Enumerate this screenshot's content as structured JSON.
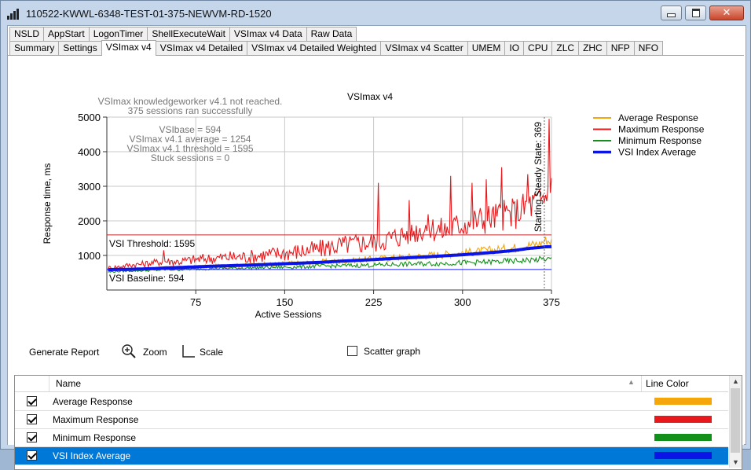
{
  "window": {
    "title": "110522-KWWL-6348-TEST-01-375-NEWVM-RD-1520",
    "buttons": [
      "minimize",
      "maximize",
      "close"
    ]
  },
  "tabs_row1": [
    "NSLD",
    "AppStart",
    "LogonTimer",
    "ShellExecuteWait",
    "VSImax v4 Data",
    "Raw Data"
  ],
  "tabs_row2": [
    "Summary",
    "Settings",
    "VSImax v4",
    "VSImax v4 Detailed",
    "VSImax v4 Detailed Weighted",
    "VSImax v4 Scatter",
    "UMEM",
    "IO",
    "CPU",
    "ZLC",
    "ZHC",
    "NFP",
    "NFO"
  ],
  "active_tab": "VSImax v4",
  "chart_data": {
    "type": "line",
    "title": "VSImax v4",
    "xlabel": "Active Sessions",
    "ylabel": "Response time, ms",
    "xlim": [
      0,
      375
    ],
    "ylim": [
      0,
      5000
    ],
    "xticks": [
      75,
      150,
      225,
      300,
      375
    ],
    "yticks": [
      1000,
      2000,
      3000,
      4000,
      5000
    ],
    "grid": true,
    "legend_placement": "right",
    "annotations": [
      "VSImax knowledgeworker v4.1 not reached.",
      "375 sessions ran successfully",
      "VSIbase = 594",
      "VSImax v4.1 average = 1254",
      "VSImax v4.1 threshold = 1595",
      "Stuck sessions = 0"
    ],
    "threshold_label": "VSI Threshold: 1595",
    "threshold_value": 1595,
    "baseline_label": "VSI Baseline: 594",
    "baseline_value": 594,
    "steady_state_label": "Starting Steady State: 369",
    "steady_state_x": 369,
    "x": [
      1,
      10,
      20,
      30,
      40,
      50,
      60,
      75,
      90,
      105,
      120,
      135,
      150,
      165,
      180,
      195,
      210,
      225,
      240,
      255,
      270,
      285,
      300,
      315,
      330,
      345,
      355,
      365,
      370,
      375
    ],
    "series": [
      {
        "name": "Average Response",
        "color": "#f5a60a",
        "values": [
          560,
          580,
          600,
          610,
          620,
          650,
          640,
          670,
          690,
          700,
          720,
          740,
          760,
          780,
          810,
          830,
          860,
          900,
          930,
          960,
          1000,
          1030,
          1080,
          1120,
          1170,
          1230,
          1300,
          1340,
          1450,
          1400
        ]
      },
      {
        "name": "Maximum Response",
        "color": "#e8191c",
        "values": [
          620,
          650,
          700,
          720,
          760,
          800,
          780,
          840,
          870,
          900,
          900,
          960,
          1000,
          1050,
          1100,
          1200,
          1250,
          1300,
          1400,
          1550,
          1700,
          1600,
          1800,
          1900,
          2000,
          2100,
          2300,
          2400,
          2600,
          2800
        ]
      },
      {
        "name": "Minimum Response",
        "color": "#12901a",
        "values": [
          520,
          540,
          555,
          560,
          570,
          590,
          590,
          610,
          620,
          630,
          640,
          650,
          660,
          670,
          690,
          700,
          710,
          720,
          740,
          750,
          760,
          770,
          790,
          800,
          820,
          840,
          860,
          880,
          900,
          880
        ]
      },
      {
        "name": "VSI Index Average",
        "color": "#0a14e6",
        "values": [
          590,
          595,
          600,
          610,
          620,
          640,
          650,
          670,
          690,
          705,
          720,
          740,
          760,
          780,
          800,
          830,
          855,
          880,
          910,
          935,
          960,
          990,
          1020,
          1060,
          1100,
          1150,
          1200,
          1230,
          1250,
          1254
        ]
      }
    ],
    "max_spikes": [
      {
        "x": 48,
        "y": 1150
      },
      {
        "x": 229,
        "y": 3100
      },
      {
        "x": 255,
        "y": 2600
      },
      {
        "x": 290,
        "y": 3300
      },
      {
        "x": 308,
        "y": 3100
      },
      {
        "x": 320,
        "y": 3200
      },
      {
        "x": 333,
        "y": 3550
      },
      {
        "x": 355,
        "y": 3350
      },
      {
        "x": 373,
        "y": 4950
      }
    ]
  },
  "toolbar": {
    "generate_report": "Generate Report",
    "zoom": "Zoom",
    "scale": "Scale",
    "scatter_graph": "Scatter graph"
  },
  "grid": {
    "headers": {
      "name": "Name",
      "line_color": "Line Color"
    },
    "rows": [
      {
        "name": "Average Response",
        "checked": true,
        "color": "#f5a60a",
        "selected": false
      },
      {
        "name": "Maximum Response",
        "checked": true,
        "color": "#e8191c",
        "selected": false
      },
      {
        "name": "Minimum Response",
        "checked": true,
        "color": "#12901a",
        "selected": false
      },
      {
        "name": "VSI Index Average",
        "checked": true,
        "color": "#0a14e6",
        "selected": true
      }
    ]
  }
}
